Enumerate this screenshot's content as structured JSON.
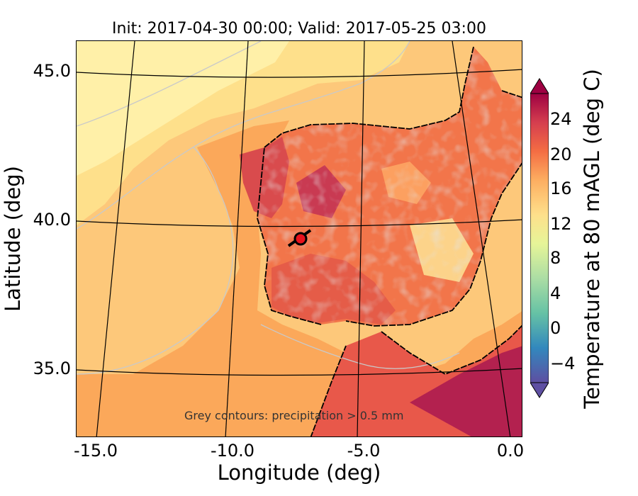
{
  "title": "Init: 2017-04-30 00:00; Valid: 2017-05-25 03:00",
  "xlabel": "Longitude (deg)",
  "ylabel": "Latitude (deg)",
  "colorbar_label": "Temperature at 80 mAGL (deg C)",
  "annotation": "Grey contours: precipitation  > 0.5 mm",
  "x_ticks": [
    "-15.0",
    "-10.0",
    "-5.0",
    "0.0"
  ],
  "y_ticks": [
    "45.0",
    "40.0",
    "35.0"
  ],
  "colorbar_ticks": [
    "24",
    "20",
    "16",
    "12",
    "8",
    "4",
    "0",
    "−4"
  ],
  "chart_data": {
    "type": "heatmap",
    "title": "Init: 2017-04-30 00:00; Valid: 2017-05-25 03:00",
    "xlabel": "Longitude (deg)",
    "ylabel": "Latitude (deg)",
    "colorbar": {
      "label": "Temperature at 80 mAGL (deg C)",
      "ticks": [
        24,
        20,
        16,
        12,
        8,
        4,
        0,
        -4
      ],
      "range": [
        -7,
        27
      ],
      "extend": "both",
      "colors": [
        "#5e4fa2",
        "#3288bd",
        "#66c2a5",
        "#abdda4",
        "#e6f598",
        "#fee08b",
        "#fdae61",
        "#f46d43",
        "#d53e4f",
        "#9e0142"
      ]
    },
    "x_ticks": [
      -15.0,
      -10.0,
      -5.0,
      0.0
    ],
    "y_ticks": [
      45.0,
      40.0,
      35.0
    ],
    "marker": {
      "lon": -7.5,
      "lat": 39.3,
      "color": "#e8121d"
    },
    "annotation": "Grey contours: precipitation  > 0.5 mm"
  }
}
